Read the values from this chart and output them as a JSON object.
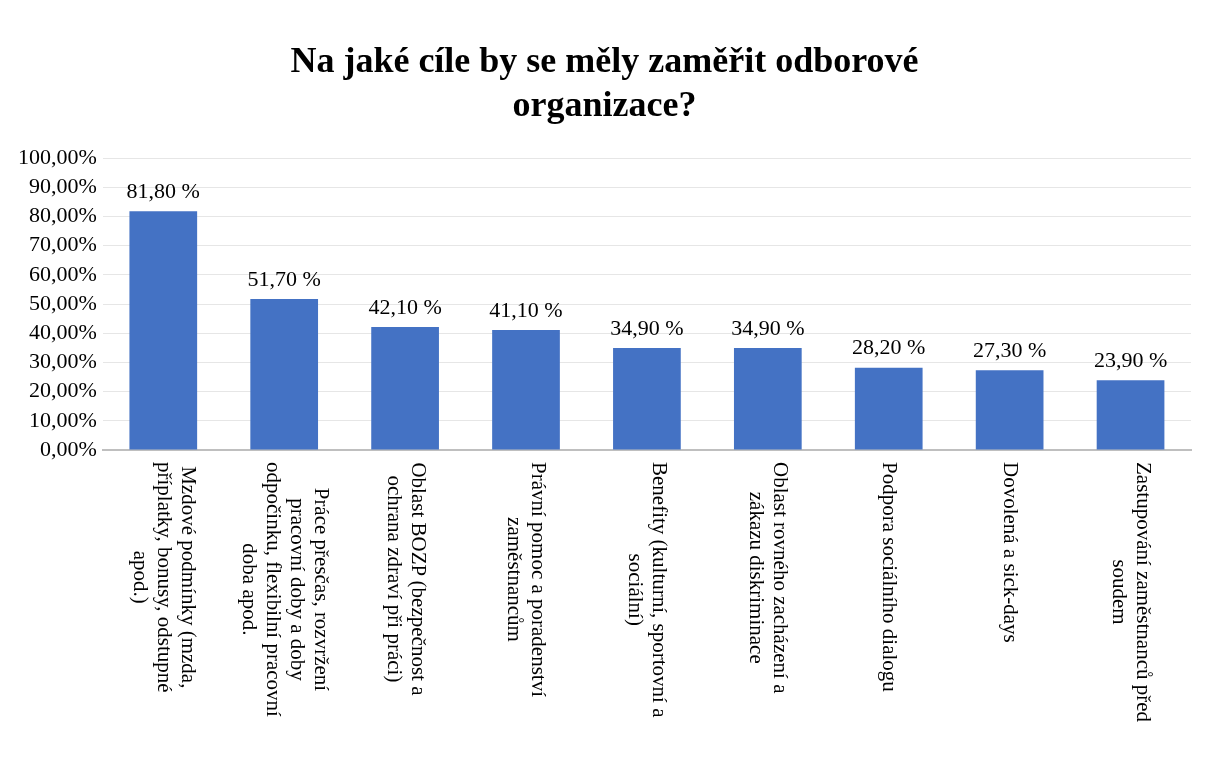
{
  "chart_data": {
    "type": "bar",
    "title": "Na jaké cíle by se měly zaměřit odborové organizace?",
    "categories": [
      "Mzdové podmínky (mzda, příplatky, bonusy, odstupné apod.)",
      "Práce přesčas, rozvržení pracovní doby a doby odpočinku, flexibilní pracovní doba apod.",
      "Oblast BOZP (bezpečnost a ochrana zdraví při práci)",
      "Právní pomoc a poradenství zaměstnancům",
      "Benefity (kulturní, sportovní a sociální)",
      "Oblast rovného zacházení a zákazu diskriminace",
      "Podpora sociálního dialogu",
      "Dovolená a sick-days",
      "Zastupování zaměstnanců před soudem"
    ],
    "values": [
      81.8,
      51.7,
      42.1,
      41.1,
      34.9,
      34.9,
      28.2,
      27.3,
      23.9
    ],
    "value_labels": [
      "81,80 %",
      "51,70 %",
      "42,10 %",
      "41,10 %",
      "34,90 %",
      "34,90 %",
      "28,20 %",
      "27,30 %",
      "23,90 %"
    ],
    "color": "#4472c4",
    "ylim": [
      0,
      100
    ],
    "yticks": [
      {
        "value": 0,
        "label": "0,00%"
      },
      {
        "value": 10,
        "label": "10,00%"
      },
      {
        "value": 20,
        "label": "20,00%"
      },
      {
        "value": 30,
        "label": "30,00%"
      },
      {
        "value": 40,
        "label": "40,00%"
      },
      {
        "value": 50,
        "label": "50,00%"
      },
      {
        "value": 60,
        "label": "60,00%"
      },
      {
        "value": 70,
        "label": "70,00%"
      },
      {
        "value": 80,
        "label": "80,00%"
      },
      {
        "value": 90,
        "label": "90,00%"
      },
      {
        "value": 100,
        "label": "100,00%"
      }
    ],
    "grid": "y"
  }
}
